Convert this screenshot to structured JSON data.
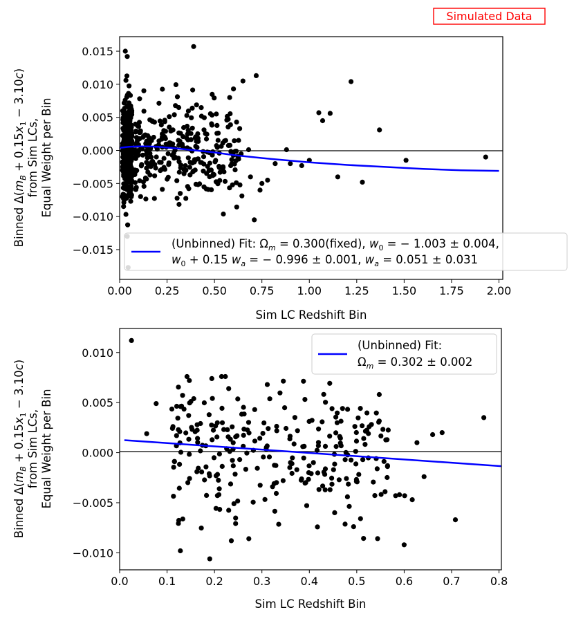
{
  "badge": {
    "text": "Simulated Data",
    "color": "#ff0000"
  },
  "colors": {
    "points": "#000000",
    "fit_line": "#0000ff",
    "zero_line": "#000000"
  },
  "chart_data": [
    {
      "type": "scatter",
      "xlabel": "Sim LC Redshift Bin",
      "ylabel_lines": [
        "Binned Δ(m_B + 0.15 x_1 − 3.10 c)",
        "from Sim LCs,",
        "Equal Weight per Bin"
      ],
      "xlim": [
        0.0,
        2.02
      ],
      "ylim": [
        -0.0195,
        0.0172
      ],
      "xticks": [
        0.0,
        0.25,
        0.5,
        0.75,
        1.0,
        1.25,
        1.5,
        1.75,
        2.0
      ],
      "xtick_labels": [
        "0.00",
        "0.25",
        "0.50",
        "0.75",
        "1.00",
        "1.25",
        "1.50",
        "1.75",
        "2.00"
      ],
      "yticks": [
        -0.015,
        -0.01,
        -0.005,
        0.0,
        0.005,
        0.01,
        0.015
      ],
      "ytick_labels": [
        "−0.015",
        "−0.010",
        "−0.005",
        "0.000",
        "0.005",
        "0.010",
        "0.015"
      ],
      "legend": {
        "position": "lower-right",
        "line1": "(Unbinned) Fit: Ω_m = 0.300(fixed), w_0 = −1.003 ± 0.004,",
        "line2": "w_0 + 0.15 w_a = −0.996 ± 0.001, w_a = 0.051 ± 0.031"
      },
      "fit_curve": {
        "x": [
          0.0,
          0.05,
          0.1,
          0.15,
          0.2,
          0.3,
          0.4,
          0.5,
          0.6,
          0.7,
          0.8,
          1.0,
          1.2,
          1.4,
          1.6,
          1.8,
          2.0
        ],
        "y": [
          0.0004,
          0.00055,
          0.0006,
          0.0006,
          0.00055,
          0.0003,
          0.0,
          -0.0003,
          -0.0007,
          -0.001,
          -0.0013,
          -0.0018,
          -0.0022,
          -0.0025,
          -0.0028,
          -0.003,
          -0.0031
        ]
      },
      "outliers": {
        "x": [
          0.39,
          0.72,
          0.65,
          0.6,
          0.58,
          0.88,
          1.0,
          1.05,
          1.07,
          1.11,
          1.22,
          1.37,
          1.15,
          1.28,
          1.51,
          1.93,
          0.9,
          0.96,
          0.82,
          0.78,
          0.75,
          0.74,
          0.69,
          0.68,
          0.71
        ],
        "y": [
          0.0157,
          0.0113,
          0.0105,
          0.0093,
          0.008,
          0.0001,
          -0.0015,
          0.0057,
          0.0045,
          0.0056,
          0.0104,
          0.0031,
          -0.004,
          -0.0048,
          -0.0015,
          -0.001,
          -0.002,
          -0.0023,
          -0.002,
          -0.0045,
          -0.005,
          -0.006,
          -0.004,
          0.0001,
          -0.0105
        ]
      }
    },
    {
      "type": "scatter",
      "xlabel": "Sim LC Redshift Bin",
      "ylabel_lines": [
        "Binned Δ(m_B + 0.15 x_1 − 3.10 c)",
        "from Sim LCs,",
        "Equal Weight per Bin"
      ],
      "xlim": [
        0.0,
        0.805
      ],
      "ylim": [
        -0.0117,
        0.0124
      ],
      "xticks": [
        0.0,
        0.1,
        0.2,
        0.3,
        0.4,
        0.5,
        0.6,
        0.7,
        0.8
      ],
      "xtick_labels": [
        "0.0",
        "0.1",
        "0.2",
        "0.3",
        "0.4",
        "0.5",
        "0.6",
        "0.7",
        "0.8"
      ],
      "yticks": [
        -0.01,
        -0.005,
        0.0,
        0.005,
        0.01
      ],
      "ytick_labels": [
        "−0.010",
        "−0.005",
        "0.000",
        "0.005",
        "0.010"
      ],
      "legend": {
        "position": "upper-right",
        "line1": "(Unbinned) Fit:",
        "line2": "Ω_m = 0.302 ± 0.002"
      },
      "fit_line": {
        "x": [
          0.01,
          0.805
        ],
        "y": [
          0.00125,
          -0.00135
        ]
      },
      "outliers": {
        "x": [
          0.025,
          0.077,
          0.057,
          0.147,
          0.19,
          0.23,
          0.6,
          0.66,
          0.68,
          0.708,
          0.768,
          0.627,
          0.642,
          0.601,
          0.617,
          0.582,
          0.59
        ],
        "y": [
          0.0112,
          0.0049,
          0.0019,
          0.0072,
          -0.0106,
          0.0064,
          -0.0092,
          0.0018,
          0.002,
          -0.0067,
          0.0035,
          0.001,
          -0.0024,
          -0.0043,
          -0.0047,
          -0.0043,
          -0.0042
        ]
      }
    }
  ]
}
